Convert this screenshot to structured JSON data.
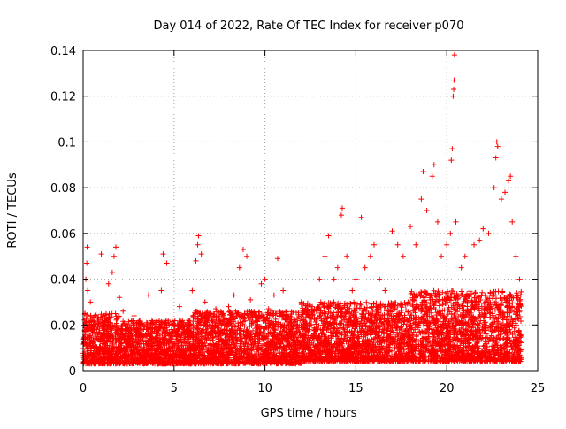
{
  "chart_data": {
    "type": "scatter",
    "title": "Day 014 of 2022, Rate Of TEC Index for receiver p070",
    "xlabel": "GPS time / hours",
    "ylabel": "ROTI / TECUs",
    "xlim": [
      0,
      25
    ],
    "ylim": [
      0,
      0.14
    ],
    "x_ticks": [
      0,
      5,
      10,
      15,
      20,
      25
    ],
    "x_tick_labels": [
      "0",
      "5",
      "10",
      "15",
      "20",
      "25"
    ],
    "y_ticks": [
      0,
      0.02,
      0.04,
      0.06,
      0.08,
      0.1,
      0.12,
      0.14
    ],
    "y_tick_labels": [
      "0",
      "0.02",
      "0.04",
      "0.06",
      "0.08",
      "0.1",
      "0.12",
      "0.14"
    ],
    "grid": true,
    "marker": "+",
    "color": "#ff0000",
    "series": [
      {
        "name": "ROTI",
        "points": [
          [
            0.05,
            0.012
          ],
          [
            0.1,
            0.025
          ],
          [
            0.15,
            0.04
          ],
          [
            0.2,
            0.047
          ],
          [
            0.22,
            0.054
          ],
          [
            0.25,
            0.035
          ],
          [
            0.3,
            0.018
          ],
          [
            0.4,
            0.03
          ],
          [
            0.5,
            0.022
          ],
          [
            0.6,
            0.01
          ],
          [
            0.8,
            0.016
          ],
          [
            1.0,
            0.051
          ],
          [
            1.2,
            0.02
          ],
          [
            1.4,
            0.038
          ],
          [
            1.6,
            0.043
          ],
          [
            1.7,
            0.05
          ],
          [
            1.8,
            0.054
          ],
          [
            2.0,
            0.032
          ],
          [
            2.2,
            0.026
          ],
          [
            2.5,
            0.018
          ],
          [
            2.8,
            0.024
          ],
          [
            3.0,
            0.012
          ],
          [
            3.3,
            0.02
          ],
          [
            3.6,
            0.033
          ],
          [
            4.0,
            0.016
          ],
          [
            4.3,
            0.035
          ],
          [
            4.4,
            0.051
          ],
          [
            4.6,
            0.047
          ],
          [
            5.0,
            0.02
          ],
          [
            5.3,
            0.028
          ],
          [
            5.8,
            0.022
          ],
          [
            6.0,
            0.035
          ],
          [
            6.2,
            0.048
          ],
          [
            6.3,
            0.055
          ],
          [
            6.35,
            0.059
          ],
          [
            6.5,
            0.051
          ],
          [
            6.7,
            0.03
          ],
          [
            7.0,
            0.016
          ],
          [
            7.3,
            0.027
          ],
          [
            7.6,
            0.02
          ],
          [
            8.0,
            0.028
          ],
          [
            8.3,
            0.033
          ],
          [
            8.6,
            0.045
          ],
          [
            8.8,
            0.053
          ],
          [
            9.0,
            0.05
          ],
          [
            9.2,
            0.031
          ],
          [
            9.5,
            0.023
          ],
          [
            9.8,
            0.038
          ],
          [
            10.0,
            0.04
          ],
          [
            10.2,
            0.027
          ],
          [
            10.5,
            0.033
          ],
          [
            10.7,
            0.049
          ],
          [
            11.0,
            0.035
          ],
          [
            11.3,
            0.016
          ],
          [
            11.6,
            0.022
          ],
          [
            12.0,
            0.03
          ],
          [
            12.3,
            0.02
          ],
          [
            12.6,
            0.028
          ],
          [
            13.0,
            0.04
          ],
          [
            13.3,
            0.05
          ],
          [
            13.5,
            0.059
          ],
          [
            13.8,
            0.04
          ],
          [
            14.0,
            0.045
          ],
          [
            14.2,
            0.068
          ],
          [
            14.25,
            0.071
          ],
          [
            14.5,
            0.05
          ],
          [
            14.8,
            0.035
          ],
          [
            15.0,
            0.04
          ],
          [
            15.3,
            0.067
          ],
          [
            15.5,
            0.045
          ],
          [
            15.8,
            0.05
          ],
          [
            16.0,
            0.055
          ],
          [
            16.3,
            0.04
          ],
          [
            16.6,
            0.035
          ],
          [
            17.0,
            0.061
          ],
          [
            17.3,
            0.055
          ],
          [
            17.6,
            0.05
          ],
          [
            18.0,
            0.063
          ],
          [
            18.3,
            0.055
          ],
          [
            18.6,
            0.075
          ],
          [
            18.7,
            0.087
          ],
          [
            18.9,
            0.07
          ],
          [
            19.2,
            0.085
          ],
          [
            19.3,
            0.09
          ],
          [
            19.5,
            0.065
          ],
          [
            19.7,
            0.05
          ],
          [
            20.0,
            0.055
          ],
          [
            20.2,
            0.06
          ],
          [
            20.25,
            0.092
          ],
          [
            20.3,
            0.097
          ],
          [
            20.35,
            0.12
          ],
          [
            20.38,
            0.123
          ],
          [
            20.4,
            0.127
          ],
          [
            20.42,
            0.138
          ],
          [
            20.5,
            0.065
          ],
          [
            20.8,
            0.045
          ],
          [
            21.0,
            0.05
          ],
          [
            21.5,
            0.055
          ],
          [
            21.8,
            0.057
          ],
          [
            22.0,
            0.062
          ],
          [
            22.3,
            0.06
          ],
          [
            22.6,
            0.08
          ],
          [
            22.7,
            0.093
          ],
          [
            22.75,
            0.1
          ],
          [
            22.8,
            0.098
          ],
          [
            23.0,
            0.075
          ],
          [
            23.2,
            0.078
          ],
          [
            23.4,
            0.083
          ],
          [
            23.5,
            0.085
          ],
          [
            23.6,
            0.065
          ],
          [
            23.8,
            0.05
          ],
          [
            24.0,
            0.04
          ]
        ]
      }
    ],
    "dense_band": {
      "description": "dense cloud of points across the full time span",
      "segments": [
        {
          "x": [
            0.0,
            2.0
          ],
          "y_low": 0.003,
          "y_high": 0.025
        },
        {
          "x": [
            2.0,
            6.0
          ],
          "y_low": 0.003,
          "y_high": 0.022
        },
        {
          "x": [
            6.0,
            12.0
          ],
          "y_low": 0.003,
          "y_high": 0.026
        },
        {
          "x": [
            12.0,
            18.0
          ],
          "y_low": 0.004,
          "y_high": 0.03
        },
        {
          "x": [
            18.0,
            24.1
          ],
          "y_low": 0.004,
          "y_high": 0.035
        }
      ]
    }
  }
}
